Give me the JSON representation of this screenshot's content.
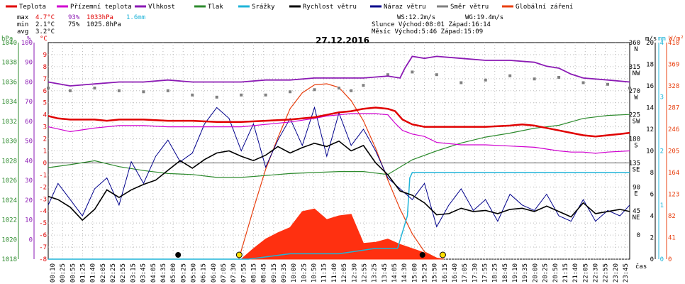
{
  "chart_data": {
    "type": "line",
    "title": "27.12.2016",
    "legend": [
      {
        "name": "Teplota",
        "color": "#e00000"
      },
      {
        "name": "Přízemní teplota",
        "color": "#d000d0"
      },
      {
        "name": "Vlhkost",
        "color": "#8b1ab4"
      },
      {
        "name": "Tlak",
        "color": "#2e8b2e"
      },
      {
        "name": "Srážky",
        "color": "#1fb4d8"
      },
      {
        "name": "Rychlost větru",
        "color": "#000000"
      },
      {
        "name": "Náraz větru",
        "color": "#00008b"
      },
      {
        "name": "Směr větru",
        "color": "#808080"
      },
      {
        "name": "Globální záření",
        "color": "#e84010"
      }
    ],
    "stats": {
      "max_label": "max",
      "min_label": "min",
      "avg_label": "avg",
      "temp_max": "4.7°C",
      "hum_max": "93%",
      "press_max": "1033hPa",
      "rain_max": "1.6mm",
      "temp_min": "2.1°C",
      "hum_min": "75%",
      "press_min": "1025.8hPa",
      "temp_avg": "3.2°C"
    },
    "info": {
      "ws": "WS:12.2m/s",
      "wg": "WG:19.4m/s",
      "sun": "Slunce Východ:08:01  Západ:16:14",
      "moon": "Měsíc  Východ:5:46   Západ:15:09"
    },
    "axis_units": {
      "hpa": "hPa",
      "pct": "%",
      "deg": "°C",
      "ms": "m/s",
      "mm": "mm",
      "wm2": "W/m²",
      "time": "čas"
    },
    "axes": {
      "hpa": {
        "ticks": [
          "1040",
          "1038",
          "1036",
          "1034",
          "1032",
          "1030",
          "1028",
          "1026",
          "1024",
          "1022",
          "1020",
          "1018"
        ],
        "range": [
          1018,
          1040
        ]
      },
      "pct": {
        "ticks": [
          "100",
          "90",
          "80",
          "70",
          "60",
          "50",
          "40",
          "30",
          "20",
          "10",
          "0"
        ],
        "range": [
          -10,
          100
        ]
      },
      "deg": {
        "ticks": [
          "9",
          "8",
          "7",
          "6",
          "5",
          "4",
          "3",
          "2",
          "1",
          "0",
          "-1",
          "-2",
          "-3",
          "-4",
          "-5",
          "-6",
          "-7",
          "-8"
        ],
        "range": [
          -8,
          10
        ]
      },
      "dir": {
        "ticks": [
          "360",
          "315",
          "270",
          "225",
          "180",
          "135",
          "90",
          "45",
          "0"
        ],
        "range": [
          0,
          360
        ]
      },
      "compass": [
        "N",
        "NW",
        "W",
        "SW",
        "S",
        "SE",
        "E",
        "NE"
      ],
      "ms": {
        "ticks": [
          "20",
          "18",
          "16",
          "14",
          "12",
          "10",
          "8",
          "6",
          "4",
          "2",
          "0"
        ],
        "range": [
          0,
          20
        ]
      },
      "mm": {
        "ticks": [
          "4",
          "3",
          "2",
          "1",
          "0"
        ],
        "range": [
          0,
          4
        ]
      },
      "wm2": {
        "ticks": [
          "410",
          "369",
          "328",
          "287",
          "246",
          "205",
          "164",
          "123",
          "82",
          "41",
          "0"
        ],
        "range": [
          0,
          410
        ]
      }
    },
    "x_labels": [
      "00:10",
      "00:25",
      "00:55",
      "01:25",
      "01:40",
      "02:05",
      "02:25",
      "02:55",
      "03:15",
      "03:45",
      "04:05",
      "04:35",
      "05:00",
      "05:25",
      "05:50",
      "06:15",
      "06:40",
      "07:05",
      "07:30",
      "07:55",
      "08:15",
      "08:45",
      "09:15",
      "09:35",
      "10:00",
      "10:25",
      "10:50",
      "11:15",
      "11:40",
      "12:05",
      "12:30",
      "12:55",
      "13:25",
      "13:45",
      "14:05",
      "14:30",
      "15:00",
      "15:25",
      "15:50",
      "16:15",
      "16:40",
      "17:05",
      "17:30",
      "17:55",
      "18:25",
      "18:45",
      "19:10",
      "19:35",
      "20:00",
      "20:25",
      "20:50",
      "21:15",
      "21:40",
      "22:05",
      "22:30",
      "22:55",
      "23:20",
      "23:45"
    ],
    "x_range_hours": [
      0.1,
      23.9
    ],
    "series": [
      {
        "name": "Teplota",
        "unit": "°C",
        "x": [
          0.1,
          0.5,
          1,
          1.5,
          2,
          2.5,
          3,
          4,
          5,
          6,
          7,
          8,
          9,
          10,
          11,
          11.5,
          12,
          12.5,
          13,
          13.5,
          14,
          14.3,
          14.6,
          15,
          15.5,
          16,
          16.5,
          17,
          17.5,
          18,
          19,
          19.5,
          20,
          20.5,
          21,
          21.5,
          22,
          22.5,
          23,
          23.5,
          23.9
        ],
        "values": [
          3.9,
          3.7,
          3.6,
          3.6,
          3.6,
          3.5,
          3.6,
          3.6,
          3.5,
          3.5,
          3.4,
          3.4,
          3.5,
          3.6,
          3.8,
          4.0,
          4.2,
          4.3,
          4.5,
          4.6,
          4.5,
          4.3,
          3.6,
          3.2,
          3.0,
          3.0,
          3.0,
          3.0,
          3.0,
          3.0,
          3.1,
          3.2,
          3.1,
          2.9,
          2.7,
          2.5,
          2.3,
          2.2,
          2.3,
          2.4,
          2.5
        ]
      },
      {
        "name": "Přízemní teplota",
        "unit": "°C",
        "x": [
          0.1,
          1,
          2,
          3,
          4,
          5,
          6,
          7,
          8,
          9,
          10,
          11,
          11.5,
          12,
          12.5,
          13,
          13.5,
          14,
          14.3,
          14.6,
          15,
          15.5,
          16,
          17,
          18,
          19,
          20,
          21,
          21.5,
          22,
          22.5,
          23,
          23.9
        ],
        "values": [
          3.0,
          2.6,
          2.9,
          3.1,
          3.1,
          3.0,
          3.0,
          3.0,
          3.0,
          3.2,
          3.4,
          3.7,
          3.9,
          4.0,
          4.1,
          4.1,
          4.1,
          4.0,
          3.3,
          2.7,
          2.4,
          2.2,
          1.7,
          1.5,
          1.5,
          1.4,
          1.3,
          1.0,
          0.9,
          0.9,
          0.8,
          0.9,
          1.0
        ]
      },
      {
        "name": "Vlhkost",
        "unit": "%",
        "x": [
          0.1,
          1,
          2,
          3,
          4,
          5,
          6,
          7,
          8,
          9,
          10,
          11,
          12,
          13,
          14,
          14.5,
          14.7,
          15,
          15.5,
          16,
          17,
          18,
          19,
          20,
          20.5,
          21,
          21.5,
          22,
          23,
          23.9
        ],
        "values": [
          80,
          78,
          79,
          80,
          80,
          81,
          80,
          80,
          80,
          81,
          81,
          82,
          82,
          82,
          83,
          82,
          87,
          93,
          92,
          93,
          92,
          91,
          91,
          90,
          88,
          87,
          84,
          82,
          81,
          80
        ]
      },
      {
        "name": "Tlak",
        "unit": "hPa",
        "x": [
          0.1,
          1,
          2,
          3,
          4,
          5,
          6,
          7,
          8,
          9,
          10,
          11,
          12,
          13,
          14,
          15,
          16,
          17,
          18,
          19,
          20,
          21,
          22,
          23,
          23.9
        ],
        "values": [
          1027.3,
          1027.6,
          1028.0,
          1027.4,
          1027.0,
          1026.7,
          1026.6,
          1026.3,
          1026.3,
          1026.5,
          1026.7,
          1026.8,
          1026.9,
          1026.9,
          1026.6,
          1028.1,
          1029.0,
          1029.8,
          1030.4,
          1030.8,
          1031.3,
          1031.6,
          1032.3,
          1032.6,
          1032.7
        ]
      },
      {
        "name": "Srážky",
        "unit": "mm",
        "x": [
          0.1,
          8.3,
          10,
          12,
          13.5,
          14.4,
          14.8,
          14.9,
          15.0,
          23.9
        ],
        "values": [
          0,
          0,
          0.1,
          0.1,
          0.2,
          0.2,
          0.8,
          1.5,
          1.6,
          1.6
        ]
      },
      {
        "name": "Rychlost větru",
        "unit": "m/s",
        "x": [
          0.1,
          0.5,
          1,
          1.5,
          2,
          2.5,
          3,
          3.5,
          4,
          4.5,
          5,
          5.5,
          6,
          6.5,
          7,
          7.5,
          8,
          8.5,
          9,
          9.5,
          10,
          10.5,
          11,
          11.5,
          12,
          12.5,
          13,
          13.5,
          14,
          14.5,
          15,
          15.5,
          16,
          16.5,
          17,
          17.5,
          18,
          18.5,
          19,
          19.5,
          20,
          20.5,
          21,
          21.5,
          22,
          22.5,
          23,
          23.5,
          23.9
        ],
        "values": [
          5.8,
          5.5,
          4.8,
          3.6,
          4.6,
          6.4,
          5.7,
          6.4,
          6.9,
          7.3,
          8.2,
          9.1,
          8.4,
          9.2,
          9.8,
          10.0,
          9.5,
          9.1,
          9.6,
          10.4,
          9.8,
          10.3,
          10.7,
          10.4,
          10.9,
          10.0,
          10.5,
          8.9,
          7.8,
          6.3,
          5.9,
          5.2,
          4.1,
          4.2,
          4.7,
          4.4,
          4.5,
          4.2,
          4.6,
          4.7,
          4.4,
          4.9,
          4.4,
          3.9,
          5.2,
          4.2,
          4.4,
          4.6,
          4.4
        ]
      },
      {
        "name": "Náraz větru",
        "unit": "m/s",
        "x": [
          0.1,
          0.5,
          1,
          1.5,
          2,
          2.5,
          3,
          3.5,
          4,
          4.5,
          5,
          5.5,
          6,
          6.5,
          7,
          7.5,
          8,
          8.5,
          9,
          9.5,
          10,
          10.5,
          11,
          11.5,
          12,
          12.5,
          13,
          13.5,
          14,
          14.5,
          15,
          15.5,
          16,
          16.5,
          17,
          17.5,
          18,
          18.5,
          19,
          19.5,
          20,
          20.5,
          21,
          21.5,
          22,
          22.5,
          23,
          23.5,
          23.9
        ],
        "values": [
          5.0,
          7.0,
          5.5,
          4.0,
          6.5,
          7.5,
          5.0,
          9.0,
          7.0,
          9.5,
          11.0,
          9.0,
          9.8,
          12.5,
          14.0,
          13.0,
          10.0,
          12.5,
          8.5,
          11.0,
          13.0,
          10.5,
          14.0,
          9.5,
          13.5,
          10.5,
          12.0,
          10.0,
          7.5,
          6.5,
          5.5,
          7.0,
          3.0,
          5.0,
          6.5,
          4.5,
          5.5,
          3.5,
          6.0,
          5.0,
          4.5,
          6.0,
          4.0,
          3.5,
          5.5,
          3.5,
          4.5,
          4.0,
          5.0
        ]
      },
      {
        "name": "Směr větru",
        "unit": "°",
        "x": [
          0.1,
          1,
          2,
          3,
          4,
          5,
          6,
          7,
          8,
          9,
          10,
          11,
          12,
          12.5,
          13,
          14,
          15,
          16,
          17,
          18,
          19,
          20,
          21,
          22,
          23,
          23.9
        ],
        "values": [
          275,
          270,
          275,
          270,
          268,
          270,
          262,
          258,
          262,
          262,
          268,
          272,
          275,
          270,
          280,
          300,
          305,
          300,
          285,
          290,
          298,
          292,
          295,
          285,
          282,
          275
        ]
      },
      {
        "name": "Globální záření",
        "unit": "W/m²",
        "x": [
          8.0,
          8.5,
          9,
          9.5,
          10,
          10.5,
          11,
          11.5,
          12,
          12.5,
          13,
          13.5,
          14,
          14.5,
          15,
          15.5,
          16,
          16.2
        ],
        "values": [
          0,
          20,
          38,
          50,
          60,
          90,
          95,
          75,
          82,
          85,
          30,
          32,
          38,
          28,
          20,
          12,
          2,
          0
        ]
      },
      {
        "name": "Globální záření max",
        "unit": "W/m²",
        "x": [
          7.9,
          8.5,
          9,
          9.5,
          10,
          10.5,
          11,
          11.5,
          12,
          12.5,
          13,
          13.5,
          14,
          14.5,
          15,
          15.5,
          16,
          16.3
        ],
        "values": [
          0,
          95,
          170,
          230,
          285,
          315,
          330,
          332,
          325,
          300,
          262,
          210,
          150,
          95,
          48,
          14,
          2,
          0
        ]
      }
    ],
    "markers": {
      "sunrise": "07:55",
      "sunset": "16:15",
      "moonrise": "05:25",
      "moonset": "15:25"
    }
  }
}
